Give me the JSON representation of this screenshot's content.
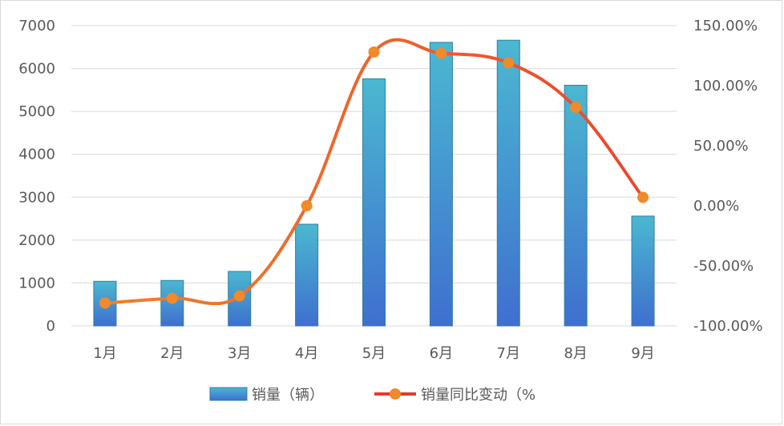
{
  "chart_data": {
    "type": "bar+line",
    "categories": [
      "1月",
      "2月",
      "3月",
      "4月",
      "5月",
      "6月",
      "7月",
      "8月",
      "9月"
    ],
    "series": [
      {
        "name": "销量（辆）",
        "type": "bar",
        "axis": "left",
        "values": [
          1040,
          1060,
          1270,
          2370,
          5760,
          6610,
          6660,
          5610,
          2560
        ],
        "color_top": "#4bb8d0",
        "color_bottom": "#3f6fcf",
        "border_color": "#2f7fa0"
      },
      {
        "name": "销量同比变动（%",
        "type": "line",
        "axis": "right",
        "values": [
          -81,
          -77,
          -75,
          0,
          128,
          127,
          119,
          82,
          7
        ],
        "line_color_start": "#f08a2a",
        "line_color_end": "#e8392f",
        "marker_color": "#f08a2a"
      }
    ],
    "left_axis": {
      "ylim": [
        0,
        7000
      ],
      "ticks": [
        "0",
        "1000",
        "2000",
        "3000",
        "4000",
        "5000",
        "6000",
        "7000"
      ]
    },
    "right_axis": {
      "ylim": [
        -100,
        150
      ],
      "ticks": [
        "-100.00%",
        "-50.00%",
        "0.00%",
        "50.00%",
        "100.00%",
        "150.00%"
      ]
    },
    "grid": true,
    "legend_position": "bottom"
  }
}
